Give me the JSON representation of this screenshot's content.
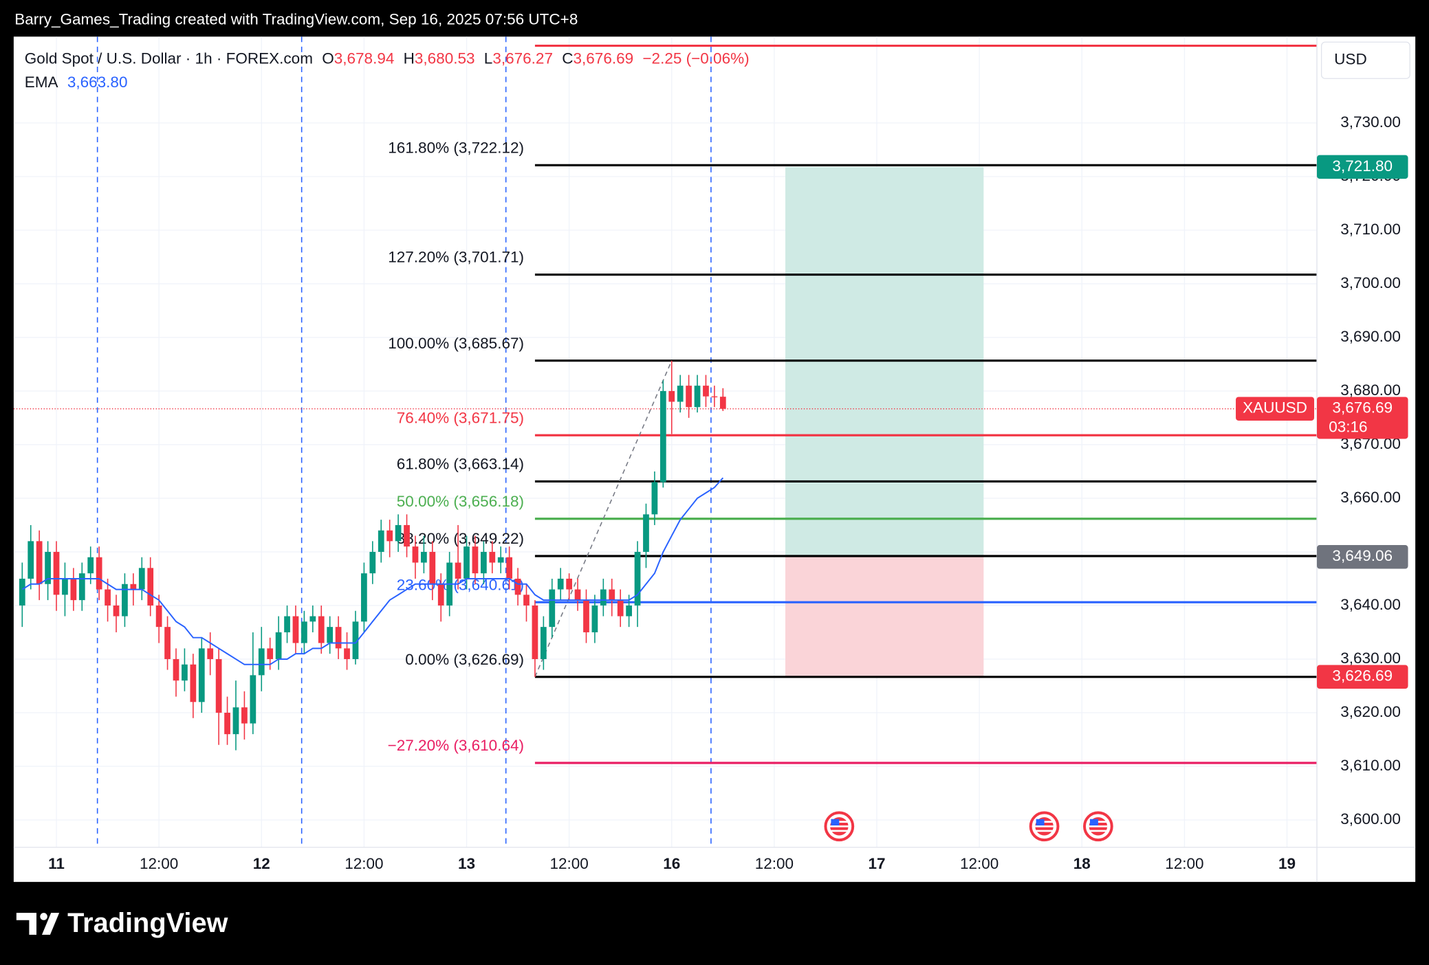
{
  "top_note": "Barry_Games_Trading created with TradingView.com, Sep 16, 2025 07:56 UTC+8",
  "brand": "TradingView",
  "chart_data": {
    "type": "candlestick",
    "legend": {
      "symbol": "Gold Spot / U.S. Dollar · 1h · FOREX.com",
      "o_label": "O",
      "o": "3,678.94",
      "h_label": "H",
      "h": "3,680.53",
      "l_label": "L",
      "l": "3,676.27",
      "c_label": "C",
      "c": "3,676.69",
      "change": "−2.25 (−0.06%)",
      "ema_label": "EMA",
      "ema_value": "3,663.80"
    },
    "currency": "USD",
    "x": [
      -4,
      -3,
      -2,
      -1,
      0,
      1,
      2,
      3,
      4,
      5,
      6,
      7,
      8,
      9,
      10,
      11,
      12,
      13,
      14,
      15,
      16,
      17,
      18,
      19,
      20,
      21,
      22,
      23,
      24,
      25,
      26,
      27,
      28,
      29,
      30,
      31,
      32,
      33,
      34,
      35,
      36,
      37,
      38,
      39,
      40,
      41,
      42,
      43,
      44,
      45,
      46,
      47,
      48,
      49,
      50,
      51,
      52,
      53,
      54,
      55,
      56,
      57,
      58,
      59,
      60,
      61,
      62,
      63,
      64,
      65,
      66,
      67,
      68,
      69,
      70,
      71,
      72,
      73,
      74,
      75,
      76,
      77,
      78
    ],
    "open": [
      3640,
      3645,
      3652,
      3644,
      3650,
      3642,
      3645,
      3641,
      3646,
      3649,
      3643,
      3640,
      3638,
      3644,
      3643,
      3647,
      3640,
      3636,
      3630,
      3626,
      3629,
      3622,
      3632,
      3630,
      3620,
      3616,
      3621,
      3618,
      3627,
      3632,
      3630,
      3635,
      3638,
      3633,
      3637,
      3638,
      3633,
      3636,
      3632,
      3630,
      3637,
      3646,
      3650,
      3654,
      3652,
      3655,
      3651,
      3648,
      3650,
      3644,
      3640,
      3648,
      3645,
      3651,
      3646,
      3650,
      3648,
      3649,
      3645,
      3642,
      3640,
      3630,
      3636,
      3643,
      3645,
      3643,
      3641,
      3635,
      3640,
      3643,
      3641,
      3638,
      3640,
      3650,
      3657,
      3663,
      3680,
      3678,
      3681,
      3677,
      3681,
      3679,
      3678.94
    ],
    "high": [
      3648,
      3655,
      3654,
      3652,
      3652,
      3648,
      3647,
      3648,
      3651,
      3651,
      3645,
      3642,
      3646,
      3646,
      3649,
      3649,
      3642,
      3638,
      3632,
      3632,
      3631,
      3634,
      3635,
      3632,
      3623,
      3626,
      3624,
      3635,
      3636,
      3634,
      3638,
      3640,
      3640,
      3639,
      3640,
      3640,
      3638,
      3638,
      3635,
      3639,
      3648,
      3652,
      3656,
      3656,
      3657,
      3657,
      3653,
      3653,
      3652,
      3646,
      3650,
      3655,
      3653,
      3653,
      3652,
      3652,
      3651,
      3651,
      3647,
      3644,
      3641,
      3638,
      3645,
      3647,
      3646,
      3645,
      3643,
      3642,
      3645,
      3645,
      3643,
      3642,
      3652,
      3659,
      3665,
      3682,
      3685.67,
      3683,
      3683,
      3683,
      3683,
      3681,
      3680.53
    ],
    "low": [
      3636,
      3643,
      3641,
      3641,
      3639,
      3638,
      3639,
      3639,
      3644,
      3641,
      3637,
      3635,
      3636,
      3640,
      3641,
      3638,
      3633,
      3628,
      3623,
      3624,
      3619,
      3620,
      3627,
      3614,
      3614,
      3613,
      3615,
      3616,
      3624,
      3628,
      3628,
      3633,
      3631,
      3631,
      3635,
      3631,
      3631,
      3630,
      3628,
      3629,
      3635,
      3644,
      3648,
      3649,
      3650,
      3649,
      3645,
      3646,
      3641,
      3637,
      3638,
      3643,
      3643,
      3644,
      3644,
      3646,
      3646,
      3643,
      3640,
      3637,
      3626.69,
      3628,
      3634,
      3641,
      3641,
      3639,
      3633,
      3633,
      3638,
      3638,
      3636,
      3636,
      3636,
      3647,
      3655,
      3662,
      3672,
      3676,
      3675,
      3676,
      3677,
      3677,
      3676.27
    ],
    "close": [
      3645,
      3652,
      3644,
      3650,
      3642,
      3645,
      3641,
      3646,
      3649,
      3643,
      3640,
      3638,
      3644,
      3643,
      3647,
      3640,
      3636,
      3630,
      3626,
      3629,
      3622,
      3632,
      3630,
      3620,
      3616,
      3621,
      3618,
      3627,
      3632,
      3630,
      3635,
      3638,
      3633,
      3637,
      3638,
      3633,
      3636,
      3632,
      3630,
      3637,
      3646,
      3650,
      3654,
      3652,
      3655,
      3651,
      3648,
      3650,
      3644,
      3640,
      3648,
      3645,
      3651,
      3646,
      3650,
      3648,
      3649,
      3645,
      3642,
      3640,
      3630,
      3636,
      3643,
      3645,
      3643,
      3641,
      3635,
      3640,
      3643,
      3641,
      3638,
      3640,
      3650,
      3657,
      3663,
      3680,
      3678,
      3681,
      3677,
      3681,
      3679,
      3678.94,
      3676.69
    ],
    "up_color": "#089981",
    "down_color": "#f23645",
    "ema": {
      "name": "EMA",
      "color": "#2962ff",
      "values": [
        3643,
        3644,
        3644,
        3645,
        3645,
        3645,
        3645,
        3645,
        3645,
        3645,
        3644,
        3643,
        3643,
        3643,
        3643,
        3642,
        3641,
        3639,
        3637,
        3636,
        3634,
        3634,
        3633,
        3632,
        3631,
        3630,
        3629,
        3629,
        3629,
        3629,
        3630,
        3630,
        3631,
        3631,
        3632,
        3632,
        3633,
        3633,
        3633,
        3633,
        3635,
        3637,
        3639,
        3641,
        3642,
        3643,
        3644,
        3644,
        3644,
        3644,
        3644,
        3644,
        3645,
        3645,
        3645,
        3645,
        3645,
        3645,
        3644,
        3644,
        3642,
        3641,
        3641,
        3641,
        3641,
        3641,
        3641,
        3641,
        3641,
        3641,
        3641,
        3641,
        3642,
        3644,
        3646,
        3650,
        3653,
        3656,
        3658,
        3660,
        3661,
        3662,
        3663.8
      ]
    },
    "xlim": [
      -5,
      147.5
    ],
    "xticks": [
      {
        "value": 0,
        "label": "11"
      },
      {
        "value": 12,
        "label": "12:00"
      },
      {
        "value": 24,
        "label": "12"
      },
      {
        "value": 36,
        "label": "12:00"
      },
      {
        "value": 48,
        "label": "13"
      },
      {
        "value": 60,
        "label": "12:00"
      },
      {
        "value": 72,
        "label": "16"
      },
      {
        "value": 84,
        "label": "12:00"
      },
      {
        "value": 96,
        "label": "17"
      },
      {
        "value": 108,
        "label": "12:00"
      },
      {
        "value": 120,
        "label": "18"
      },
      {
        "value": 132,
        "label": "12:00"
      },
      {
        "value": 144,
        "label": "19"
      }
    ],
    "ylim": [
      3594.9,
      3746.1
    ],
    "yticks": [
      {
        "value": 3600,
        "label": "3,600.00"
      },
      {
        "value": 3610,
        "label": "3,610.00"
      },
      {
        "value": 3620,
        "label": "3,620.00"
      },
      {
        "value": 3630,
        "label": "3,630.00"
      },
      {
        "value": 3640,
        "label": "3,640.00"
      },
      {
        "value": 3650,
        "label": "3,650.00"
      },
      {
        "value": 3660,
        "label": "3,660.00"
      },
      {
        "value": 3670,
        "label": "3,670.00"
      },
      {
        "value": 3680,
        "label": "3,680.00"
      },
      {
        "value": 3690,
        "label": "3,690.00"
      },
      {
        "value": 3700,
        "label": "3,700.00"
      },
      {
        "value": 3710,
        "label": "3,710.00"
      },
      {
        "value": 3720,
        "label": "3,720.00"
      },
      {
        "value": 3730,
        "label": "3,730.00"
      }
    ],
    "grid": true,
    "session_breaks": [
      4.8,
      28.7,
      52.6,
      76.6
    ],
    "events_x": [
      91.6,
      115.6,
      121.9
    ],
    "fib": {
      "from": {
        "x": 56,
        "y": 3626.69
      },
      "to": {
        "x": 72,
        "y": 3685.67
      },
      "levels": [
        {
          "value": 3744.4,
          "color": "#f23645"
        },
        {
          "value": 3722.12,
          "label": "161.80% (3,722.12)",
          "color": "#000000"
        },
        {
          "value": 3701.71,
          "label": "127.20% (3,701.71)",
          "color": "#000000"
        },
        {
          "value": 3685.67,
          "label": "100.00% (3,685.67)",
          "color": "#000000"
        },
        {
          "value": 3671.75,
          "label": "76.40% (3,671.75)",
          "color": "#f23645"
        },
        {
          "value": 3663.14,
          "label": "61.80% (3,663.14)",
          "color": "#000000"
        },
        {
          "value": 3656.18,
          "label": "50.00% (3,656.18)",
          "color": "#4caf50"
        },
        {
          "value": 3649.22,
          "label": "38.20% (3,649.22)",
          "color": "#000000"
        },
        {
          "value": 3640.61,
          "label": "23.60% (3,640.61)",
          "color": "#2962ff"
        },
        {
          "value": 3626.69,
          "label": "0.00% (3,626.69)",
          "color": "#000000"
        },
        {
          "value": 3610.64,
          "label": "−27.20% (3,610.64)",
          "color": "#e91e63"
        }
      ]
    },
    "position": {
      "x_from": 85.3,
      "x_to": 108.5,
      "target": 3721.8,
      "entry": 3649.06,
      "stop": 3626.69,
      "profit_color": "#cfeae4",
      "loss_color": "#fad4d8"
    },
    "current": {
      "value": 3676.69,
      "label": "3,676.69",
      "symbol_tag": "XAUUSD",
      "countdown": "03:16",
      "color": "#f23645"
    },
    "price_badges": [
      {
        "value": 3721.8,
        "label": "3,721.80",
        "color": "#089981"
      },
      {
        "value": 3649.06,
        "label": "3,649.06",
        "color": "#6f737d"
      },
      {
        "value": 3626.69,
        "label": "3,626.69",
        "color": "#f23645"
      }
    ]
  }
}
